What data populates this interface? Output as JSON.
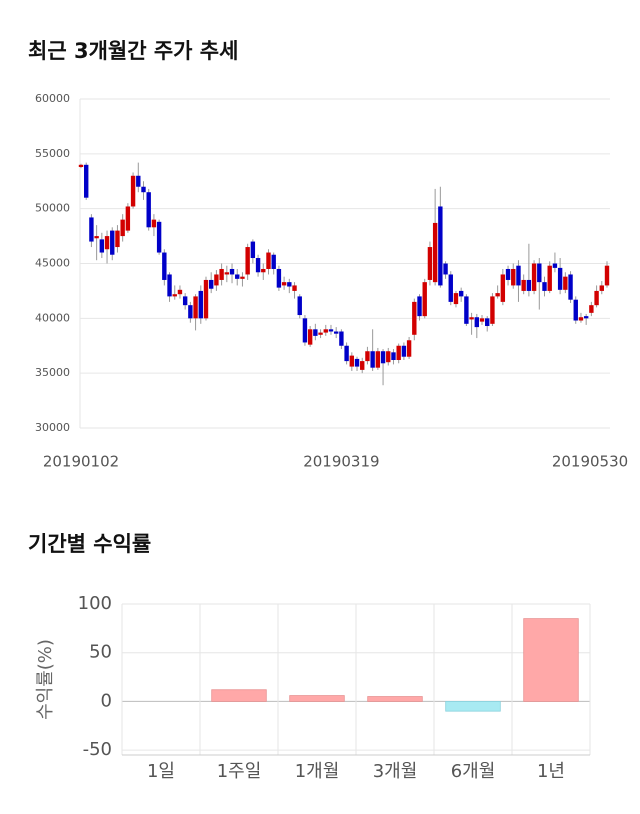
{
  "chart_data": [
    {
      "type": "candlestick",
      "title": "최근 3개월간 주가 추세",
      "categories": [
        "20190102",
        null,
        null,
        null,
        null,
        null,
        null,
        null,
        null,
        null,
        null,
        null,
        null,
        null,
        null,
        null,
        null,
        null,
        null,
        null,
        null,
        null,
        null,
        null,
        null,
        null,
        null,
        null,
        null,
        null,
        null,
        null,
        null,
        null,
        null,
        null,
        null,
        null,
        null,
        null,
        null,
        null,
        null,
        null,
        null,
        null,
        null,
        null,
        null,
        null,
        "20190319",
        null,
        null,
        null,
        null,
        null,
        null,
        null,
        null,
        null,
        null,
        null,
        null,
        null,
        null,
        null,
        null,
        null,
        null,
        null,
        null,
        null,
        null,
        null,
        null,
        null,
        null,
        null,
        null,
        null,
        null,
        null,
        null,
        null,
        null,
        null,
        null,
        null,
        null,
        null,
        null,
        null,
        null,
        null,
        null,
        null,
        null,
        null,
        null,
        null,
        null,
        "20190530"
      ],
      "open": [
        53800,
        54000,
        49200,
        47300,
        47200,
        46300,
        48000,
        46500,
        47500,
        48000,
        50200,
        53000,
        52000,
        51500,
        48300,
        48800,
        46000,
        44000,
        42000,
        42200,
        42000,
        41200,
        40000,
        42500,
        40000,
        43500,
        43000,
        43500,
        44000,
        44500,
        44000,
        43600,
        44000,
        47000,
        45500,
        44200,
        44500,
        45800,
        44500,
        43000,
        43300,
        42500,
        42000,
        40000,
        37600,
        39000,
        38500,
        38700,
        39000,
        38800,
        38800,
        37500,
        35600,
        36300,
        35300,
        36100,
        37000,
        35500,
        37000,
        36000,
        36900,
        36200,
        37500,
        36500,
        38500,
        42000,
        40200,
        43500,
        43300,
        50200,
        45000,
        44000,
        41300,
        42500,
        42000,
        39900,
        40100,
        39700,
        40000,
        39500,
        42000,
        41500,
        44500,
        43000,
        44800,
        42500,
        43500,
        42500,
        45000,
        43300,
        42500,
        45000,
        44600,
        42600,
        44000,
        41700,
        39800,
        40200,
        40500,
        41200,
        42500,
        43000
      ],
      "close": [
        54000,
        51000,
        47000,
        47500,
        46000,
        47500,
        45800,
        48000,
        49000,
        50200,
        53000,
        52000,
        51500,
        48300,
        49000,
        46000,
        43500,
        42000,
        42200,
        42600,
        41200,
        40000,
        42000,
        40000,
        43500,
        42700,
        44000,
        44500,
        44200,
        44000,
        43600,
        43800,
        46500,
        45500,
        44200,
        44500,
        46000,
        44500,
        42800,
        43300,
        42900,
        43000,
        40300,
        37800,
        39000,
        38400,
        38700,
        39000,
        38800,
        38600,
        37500,
        36100,
        36600,
        35600,
        36100,
        37000,
        35500,
        37000,
        35900,
        37000,
        36200,
        37500,
        36500,
        38000,
        41500,
        40200,
        43300,
        46500,
        48700,
        43000,
        44000,
        41500,
        42300,
        42000,
        39500,
        40100,
        39200,
        40000,
        39300,
        42000,
        42300,
        44000,
        43500,
        44500,
        43000,
        43500,
        42500,
        45000,
        43300,
        42500,
        44800,
        44600,
        42600,
        43800,
        41700,
        39800,
        40100,
        40000,
        41200,
        42500,
        43000,
        44800
      ],
      "high": [
        54100,
        54200,
        49500,
        48500,
        47800,
        48000,
        48300,
        48500,
        49500,
        50500,
        53300,
        54200,
        52500,
        51800,
        49500,
        49000,
        46300,
        44200,
        43000,
        43000,
        42300,
        41500,
        42200,
        43000,
        43800,
        44200,
        44400,
        45000,
        44800,
        45000,
        44500,
        44200,
        46800,
        47200,
        45800,
        45000,
        46300,
        46000,
        44800,
        43800,
        43600,
        43300,
        42200,
        40300,
        39300,
        39500,
        39000,
        39400,
        39400,
        39200,
        39000,
        37800,
        36900,
        36500,
        36400,
        37400,
        39000,
        37300,
        37200,
        37300,
        37200,
        37700,
        37800,
        38300,
        41800,
        42200,
        43600,
        47000,
        51800,
        52000,
        45200,
        44300,
        42500,
        42800,
        42200,
        40500,
        40400,
        40300,
        40200,
        42300,
        43000,
        44500,
        44800,
        45000,
        45300,
        44000,
        46800,
        45300,
        45500,
        43800,
        45200,
        46000,
        45500,
        44200,
        44300,
        42000,
        40500,
        40400,
        41500,
        43000,
        43400,
        45200
      ],
      "low": [
        53700,
        50800,
        46500,
        45300,
        45500,
        45000,
        45300,
        46000,
        47000,
        47800,
        50000,
        51500,
        50800,
        48000,
        47500,
        45800,
        43000,
        41500,
        41700,
        41800,
        40800,
        39600,
        38900,
        39500,
        39800,
        42300,
        42500,
        43000,
        43300,
        43200,
        43000,
        42900,
        43500,
        45000,
        43800,
        43500,
        44000,
        44000,
        42500,
        42600,
        42300,
        41800,
        40000,
        37500,
        37400,
        38000,
        38200,
        38400,
        38500,
        38200,
        37200,
        35800,
        35200,
        35200,
        35000,
        35800,
        35200,
        35300,
        33900,
        35700,
        35800,
        35900,
        36200,
        36300,
        38000,
        39800,
        40000,
        43000,
        43000,
        42800,
        43600,
        41200,
        41000,
        41500,
        39300,
        38500,
        38200,
        39400,
        38800,
        39300,
        41800,
        41200,
        43000,
        42700,
        41500,
        42200,
        42000,
        42200,
        40800,
        42000,
        42300,
        44200,
        42200,
        42300,
        41400,
        39500,
        39600,
        39400,
        40200,
        41000,
        42200,
        42800
      ],
      "up_color": "#d20000",
      "down_color": "#0000c8",
      "ylim": [
        30000,
        60000
      ],
      "yticks": [
        30000,
        35000,
        40000,
        45000,
        50000,
        55000,
        60000
      ],
      "grid": true
    },
    {
      "type": "bar",
      "title": "기간별 수익률",
      "ylabel": "수익률(%)",
      "categories": [
        "1일",
        "1주일",
        "1개월",
        "3개월",
        "6개월",
        "1년"
      ],
      "values": [
        0,
        12,
        6,
        5,
        -10,
        85
      ],
      "pos_color": "#ffa8a8",
      "neg_color": "#a8eaf2",
      "ylim": [
        -55,
        100
      ],
      "yticks": [
        -50,
        0,
        50,
        100
      ],
      "grid": true
    }
  ]
}
